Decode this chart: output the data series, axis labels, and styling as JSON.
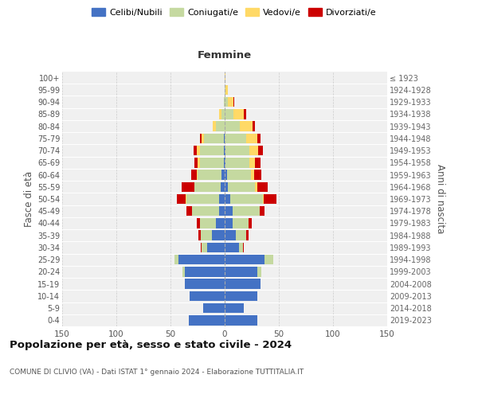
{
  "age_groups": [
    "0-4",
    "5-9",
    "10-14",
    "15-19",
    "20-24",
    "25-29",
    "30-34",
    "35-39",
    "40-44",
    "45-49",
    "50-54",
    "55-59",
    "60-64",
    "65-69",
    "70-74",
    "75-79",
    "80-84",
    "85-89",
    "90-94",
    "95-99",
    "100+"
  ],
  "birth_years": [
    "2019-2023",
    "2014-2018",
    "2009-2013",
    "2004-2008",
    "1999-2003",
    "1994-1998",
    "1989-1993",
    "1984-1988",
    "1979-1983",
    "1974-1978",
    "1969-1973",
    "1964-1968",
    "1959-1963",
    "1954-1958",
    "1949-1953",
    "1944-1948",
    "1939-1943",
    "1934-1938",
    "1929-1933",
    "1924-1928",
    "≤ 1923"
  ],
  "male": {
    "celibi": [
      33,
      20,
      32,
      37,
      37,
      43,
      16,
      12,
      8,
      5,
      5,
      4,
      3,
      1,
      1,
      1,
      0,
      0,
      0,
      0,
      0
    ],
    "coniugati": [
      0,
      0,
      0,
      0,
      2,
      3,
      5,
      10,
      15,
      25,
      30,
      24,
      22,
      22,
      22,
      18,
      8,
      3,
      1,
      0,
      0
    ],
    "vedovi": [
      0,
      0,
      0,
      0,
      0,
      0,
      0,
      0,
      0,
      0,
      1,
      0,
      1,
      2,
      3,
      2,
      3,
      2,
      0,
      0,
      0
    ],
    "divorziati": [
      0,
      0,
      0,
      0,
      0,
      0,
      1,
      2,
      3,
      5,
      8,
      12,
      5,
      3,
      3,
      2,
      0,
      0,
      0,
      0,
      0
    ]
  },
  "female": {
    "nubili": [
      30,
      18,
      30,
      33,
      30,
      37,
      13,
      10,
      7,
      7,
      5,
      3,
      2,
      1,
      1,
      0,
      0,
      0,
      0,
      0,
      0
    ],
    "coniugate": [
      0,
      0,
      0,
      0,
      4,
      8,
      4,
      10,
      15,
      25,
      30,
      25,
      22,
      22,
      22,
      20,
      14,
      8,
      3,
      1,
      0
    ],
    "vedove": [
      0,
      0,
      0,
      0,
      0,
      0,
      0,
      0,
      0,
      0,
      1,
      2,
      3,
      5,
      8,
      10,
      12,
      10,
      5,
      2,
      1
    ],
    "divorziate": [
      0,
      0,
      0,
      0,
      0,
      0,
      1,
      2,
      3,
      5,
      12,
      10,
      7,
      5,
      4,
      3,
      2,
      2,
      1,
      0,
      0
    ]
  },
  "colors": {
    "celibi": "#4472c4",
    "coniugati": "#c5d9a0",
    "vedovi": "#ffd966",
    "divorziati": "#cc0000"
  },
  "title": "Popolazione per età, sesso e stato civile - 2024",
  "subtitle": "COMUNE DI CLIVIO (VA) - Dati ISTAT 1° gennaio 2024 - Elaborazione TUTTITALIA.IT",
  "xlabel_right": "Femmine",
  "ylabel_left": "Fasce di età",
  "ylabel_right": "Anni di nascita",
  "xlim": 150,
  "bg_color": "#f0f0f0",
  "legend_labels": [
    "Celibi/Nubili",
    "Coniugati/e",
    "Vedovi/e",
    "Divorziati/e"
  ]
}
